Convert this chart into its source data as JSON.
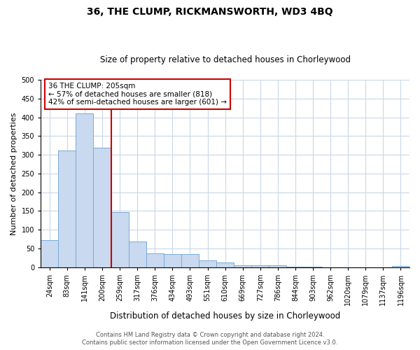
{
  "title1": "36, THE CLUMP, RICKMANSWORTH, WD3 4BQ",
  "title2": "Size of property relative to detached houses in Chorleywood",
  "xlabel": "Distribution of detached houses by size in Chorleywood",
  "ylabel": "Number of detached properties",
  "bar_labels": [
    "24sqm",
    "83sqm",
    "141sqm",
    "200sqm",
    "259sqm",
    "317sqm",
    "376sqm",
    "434sqm",
    "493sqm",
    "551sqm",
    "610sqm",
    "669sqm",
    "727sqm",
    "786sqm",
    "844sqm",
    "903sqm",
    "962sqm",
    "1020sqm",
    "1079sqm",
    "1137sqm",
    "1196sqm"
  ],
  "bar_values": [
    73,
    311,
    410,
    319,
    148,
    69,
    36,
    35,
    35,
    19,
    12,
    6,
    6,
    6,
    2,
    2,
    0,
    0,
    0,
    0,
    3
  ],
  "bar_color": "#c9d9f0",
  "bar_edge_color": "#7aaad4",
  "vline_color": "#cc0000",
  "vline_pos": 3.5,
  "annotation_text": "36 THE CLUMP: 205sqm\n← 57% of detached houses are smaller (818)\n42% of semi-detached houses are larger (601) →",
  "annotation_box_color": "#ffffff",
  "annotation_box_edge": "#cc0000",
  "ylim": [
    0,
    500
  ],
  "yticks": [
    0,
    50,
    100,
    150,
    200,
    250,
    300,
    350,
    400,
    450,
    500
  ],
  "footer1": "Contains HM Land Registry data © Crown copyright and database right 2024.",
  "footer2": "Contains public sector information licensed under the Open Government Licence v3.0.",
  "bg_color": "#ffffff",
  "grid_color": "#c8d8e8",
  "title1_fontsize": 10,
  "title2_fontsize": 8.5,
  "xlabel_fontsize": 8.5,
  "ylabel_fontsize": 8,
  "tick_fontsize": 7,
  "annot_fontsize": 7.5,
  "footer_fontsize": 6
}
